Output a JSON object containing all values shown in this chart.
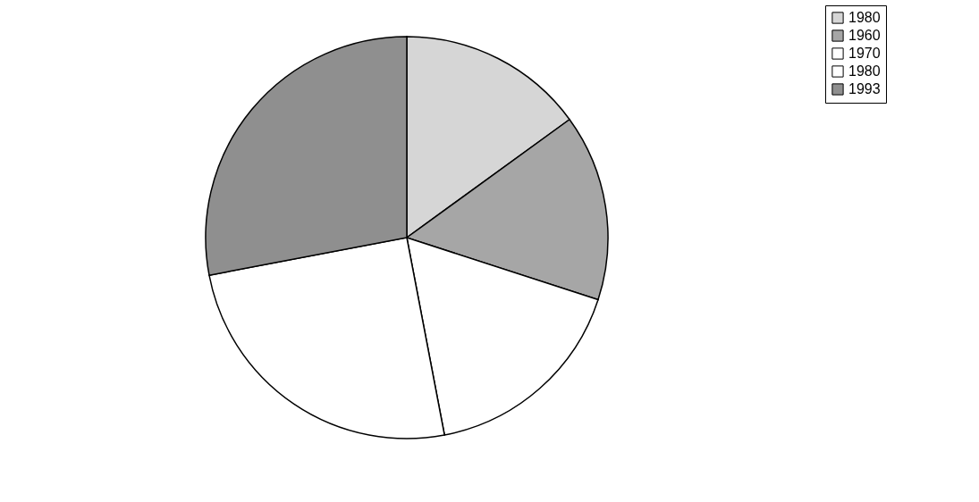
{
  "chart_data": {
    "type": "pie",
    "categories": [
      "1980",
      "1960",
      "1970",
      "1980",
      "1993"
    ],
    "values": [
      15,
      15,
      17,
      25,
      28
    ],
    "colors": [
      "#d6d6d6",
      "#a6a6a6",
      "#ffffff",
      "#ffffff",
      "#8f8f8f"
    ],
    "legend": "right"
  }
}
